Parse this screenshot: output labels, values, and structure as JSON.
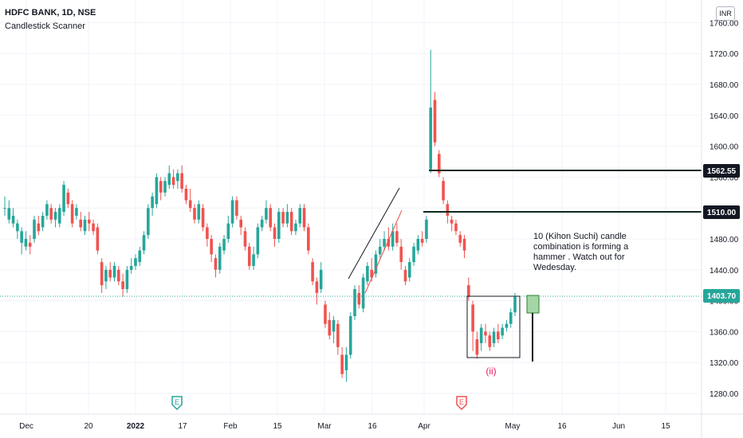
{
  "header": {
    "symbol_line": "HDFC BANK, 1D, NSE",
    "indicator": "Candlestick Scanner"
  },
  "currency": "INR",
  "annotation": {
    "text": "10 (Kihon Suchi) candle combination is forming a hammer . Watch out for Wedesday.",
    "wave_label": "(ii)"
  },
  "price_tags": {
    "last": "1403.70",
    "level_1": "1562.55",
    "level_2": "1510.00"
  },
  "earnings_markers": [
    "E",
    "E"
  ],
  "colors": {
    "up": "#26a69a",
    "down": "#ef5350",
    "tag_dark": "#131722",
    "last_tag": "#26a69a",
    "wave": "#e91e63"
  },
  "chart_data": {
    "type": "candlestick",
    "title": "HDFC BANK, 1D, NSE",
    "y_ticks": [
      "1280.00",
      "1320.00",
      "1360.00",
      "1400.00",
      "1440.00",
      "1480.00",
      "1520.00",
      "1560.00",
      "1600.00",
      "1640.00",
      "1680.00",
      "1720.00",
      "1760.00"
    ],
    "y_range": [
      1250,
      1775
    ],
    "x_ticks": [
      "Dec",
      "20",
      "2022",
      "17",
      "Feb",
      "15",
      "Mar",
      "16",
      "Apr",
      "May",
      "16",
      "Jun",
      "15"
    ],
    "candles": [
      [
        1520,
        1520,
        1535,
        1510
      ],
      [
        1505,
        1520,
        1530,
        1500
      ],
      [
        1500,
        1510,
        1520,
        1495
      ],
      [
        1490,
        1500,
        1505,
        1480
      ],
      [
        1475,
        1490,
        1495,
        1460
      ],
      [
        1470,
        1480,
        1490,
        1465
      ],
      [
        1475,
        1470,
        1485,
        1460
      ],
      [
        1480,
        1505,
        1510,
        1475
      ],
      [
        1500,
        1490,
        1510,
        1485
      ],
      [
        1495,
        1510,
        1515,
        1490
      ],
      [
        1510,
        1525,
        1530,
        1505
      ],
      [
        1520,
        1505,
        1525,
        1500
      ],
      [
        1505,
        1515,
        1520,
        1495
      ],
      [
        1500,
        1520,
        1525,
        1495
      ],
      [
        1515,
        1550,
        1555,
        1510
      ],
      [
        1540,
        1525,
        1545,
        1520
      ],
      [
        1525,
        1500,
        1530,
        1495
      ],
      [
        1510,
        1520,
        1525,
        1505
      ],
      [
        1505,
        1495,
        1515,
        1490
      ],
      [
        1490,
        1505,
        1510,
        1485
      ],
      [
        1505,
        1500,
        1515,
        1490
      ],
      [
        1500,
        1490,
        1505,
        1485
      ],
      [
        1495,
        1465,
        1500,
        1460
      ],
      [
        1450,
        1420,
        1455,
        1410
      ],
      [
        1425,
        1440,
        1445,
        1415
      ],
      [
        1440,
        1430,
        1450,
        1425
      ],
      [
        1430,
        1445,
        1450,
        1425
      ],
      [
        1440,
        1425,
        1445,
        1420
      ],
      [
        1425,
        1415,
        1435,
        1405
      ],
      [
        1415,
        1440,
        1445,
        1410
      ],
      [
        1440,
        1445,
        1455,
        1435
      ],
      [
        1445,
        1455,
        1460,
        1440
      ],
      [
        1450,
        1465,
        1470,
        1445
      ],
      [
        1465,
        1485,
        1490,
        1460
      ],
      [
        1485,
        1520,
        1525,
        1480
      ],
      [
        1520,
        1535,
        1540,
        1510
      ],
      [
        1525,
        1560,
        1565,
        1520
      ],
      [
        1555,
        1540,
        1560,
        1530
      ],
      [
        1540,
        1555,
        1560,
        1535
      ],
      [
        1550,
        1565,
        1575,
        1545
      ],
      [
        1560,
        1550,
        1570,
        1545
      ],
      [
        1555,
        1565,
        1570,
        1545
      ],
      [
        1565,
        1545,
        1575,
        1540
      ],
      [
        1545,
        1530,
        1550,
        1525
      ],
      [
        1530,
        1520,
        1545,
        1515
      ],
      [
        1520,
        1505,
        1525,
        1500
      ],
      [
        1505,
        1525,
        1530,
        1500
      ],
      [
        1520,
        1495,
        1525,
        1490
      ],
      [
        1495,
        1480,
        1500,
        1470
      ],
      [
        1480,
        1460,
        1485,
        1450
      ],
      [
        1455,
        1440,
        1460,
        1430
      ],
      [
        1440,
        1470,
        1475,
        1435
      ],
      [
        1465,
        1480,
        1485,
        1460
      ],
      [
        1480,
        1500,
        1510,
        1475
      ],
      [
        1500,
        1530,
        1535,
        1495
      ],
      [
        1530,
        1510,
        1535,
        1505
      ],
      [
        1505,
        1495,
        1510,
        1485
      ],
      [
        1490,
        1470,
        1495,
        1465
      ],
      [
        1470,
        1445,
        1475,
        1440
      ],
      [
        1445,
        1460,
        1470,
        1440
      ],
      [
        1460,
        1495,
        1500,
        1455
      ],
      [
        1495,
        1505,
        1510,
        1490
      ],
      [
        1505,
        1520,
        1530,
        1500
      ],
      [
        1520,
        1495,
        1525,
        1490
      ],
      [
        1495,
        1480,
        1500,
        1470
      ],
      [
        1480,
        1515,
        1520,
        1475
      ],
      [
        1515,
        1500,
        1520,
        1495
      ],
      [
        1500,
        1515,
        1525,
        1495
      ],
      [
        1515,
        1490,
        1520,
        1485
      ],
      [
        1490,
        1500,
        1505,
        1485
      ],
      [
        1500,
        1520,
        1525,
        1495
      ],
      [
        1520,
        1495,
        1525,
        1490
      ],
      [
        1495,
        1465,
        1500,
        1460
      ],
      [
        1450,
        1425,
        1455,
        1420
      ],
      [
        1425,
        1410,
        1430,
        1395
      ],
      [
        1415,
        1440,
        1450,
        1410
      ],
      [
        1395,
        1370,
        1400,
        1365
      ],
      [
        1375,
        1355,
        1385,
        1350
      ],
      [
        1360,
        1375,
        1380,
        1345
      ],
      [
        1370,
        1340,
        1375,
        1330
      ],
      [
        1330,
        1305,
        1340,
        1300
      ],
      [
        1310,
        1330,
        1340,
        1295
      ],
      [
        1330,
        1380,
        1385,
        1325
      ],
      [
        1380,
        1415,
        1420,
        1375
      ],
      [
        1410,
        1395,
        1420,
        1390
      ],
      [
        1390,
        1430,
        1435,
        1385
      ],
      [
        1425,
        1445,
        1450,
        1420
      ],
      [
        1440,
        1430,
        1455,
        1425
      ],
      [
        1435,
        1460,
        1465,
        1430
      ],
      [
        1460,
        1470,
        1480,
        1455
      ],
      [
        1470,
        1480,
        1490,
        1465
      ],
      [
        1480,
        1470,
        1495,
        1465
      ],
      [
        1470,
        1490,
        1500,
        1465
      ],
      [
        1490,
        1475,
        1500,
        1470
      ],
      [
        1470,
        1450,
        1480,
        1440
      ],
      [
        1440,
        1425,
        1445,
        1420
      ],
      [
        1430,
        1450,
        1455,
        1425
      ],
      [
        1450,
        1470,
        1475,
        1445
      ],
      [
        1465,
        1480,
        1485,
        1460
      ],
      [
        1480,
        1475,
        1490,
        1470
      ],
      [
        1480,
        1505,
        1510,
        1475
      ],
      [
        1570,
        1650,
        1725,
        1565
      ],
      [
        1660,
        1605,
        1670,
        1600
      ],
      [
        1590,
        1565,
        1595,
        1560
      ],
      [
        1555,
        1530,
        1560,
        1525
      ],
      [
        1525,
        1510,
        1530,
        1500
      ],
      [
        1505,
        1500,
        1510,
        1490
      ],
      [
        1500,
        1490,
        1505,
        1485
      ],
      [
        1485,
        1475,
        1490,
        1470
      ],
      [
        1480,
        1465,
        1485,
        1455
      ],
      [
        1420,
        1405,
        1430,
        1400
      ],
      [
        1395,
        1360,
        1400,
        1335
      ],
      [
        1350,
        1330,
        1360,
        1325
      ],
      [
        1345,
        1365,
        1370,
        1335
      ],
      [
        1360,
        1355,
        1370,
        1345
      ],
      [
        1355,
        1340,
        1360,
        1335
      ],
      [
        1345,
        1360,
        1365,
        1340
      ],
      [
        1360,
        1350,
        1370,
        1345
      ],
      [
        1355,
        1365,
        1370,
        1350
      ],
      [
        1365,
        1370,
        1375,
        1360
      ],
      [
        1370,
        1385,
        1390,
        1365
      ],
      [
        1385,
        1405,
        1410,
        1380
      ]
    ]
  }
}
